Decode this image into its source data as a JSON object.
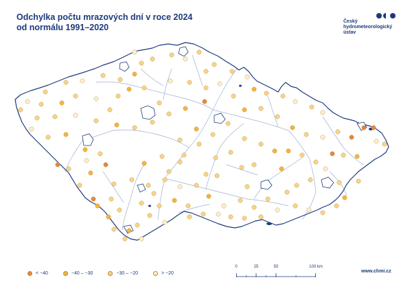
{
  "title": {
    "line1": "Odchylka počtu mrazových dní v roce 2024",
    "line2": "od normálu 1991–2020"
  },
  "logo": {
    "line1": "Český",
    "line2": "hydrometeorologický",
    "line3": "ústav"
  },
  "legend": [
    {
      "label": "< −40",
      "color": "#e8863a"
    },
    {
      "label": "−40 – −30",
      "color": "#f5b43e"
    },
    {
      "label": "−30 – −20",
      "color": "#f8d48a"
    },
    {
      "label": "> −20",
      "color": "#fcefcf"
    }
  ],
  "scale": {
    "ticks": [
      "0",
      "25",
      "50",
      "100 km"
    ]
  },
  "website": "www.chmi.cz",
  "colors": {
    "border": "#1d3a7a",
    "rivers": "#8fa3c8",
    "text": "#1d3a7a"
  }
}
